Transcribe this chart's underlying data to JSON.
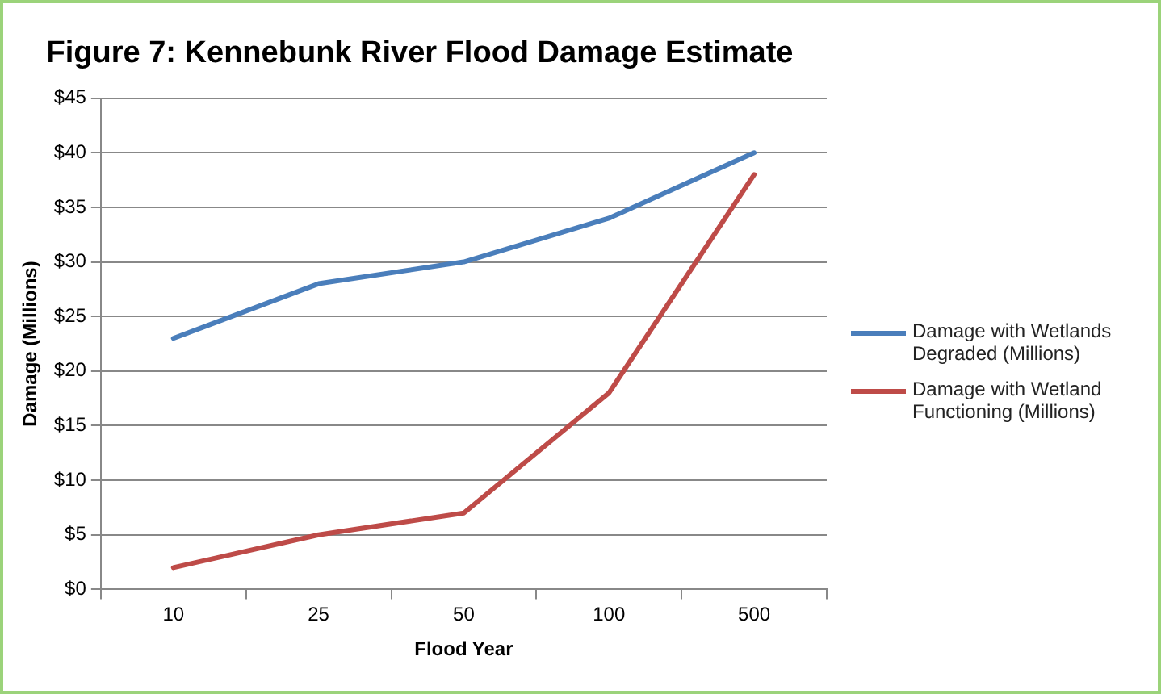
{
  "chart_data": {
    "type": "line",
    "title": "Figure 7: Kennebunk River Flood Damage Estimate",
    "xlabel": "Flood Year",
    "ylabel": "Damage (Millions)",
    "categories": [
      "10",
      "25",
      "50",
      "100",
      "500"
    ],
    "series": [
      {
        "name": "Damage with Wetlands Degraded (Millions)",
        "color": "#4a7ebb",
        "values": [
          23,
          28,
          30,
          34,
          40
        ]
      },
      {
        "name": "Damage with Wetland Functioning (Millions)",
        "color": "#be4b48",
        "values": [
          2,
          5,
          7,
          18,
          38
        ]
      }
    ],
    "ylim": [
      0,
      45
    ],
    "yticks": [
      {
        "value": 0,
        "label": "$0"
      },
      {
        "value": 5,
        "label": "$5"
      },
      {
        "value": 10,
        "label": "$10"
      },
      {
        "value": 15,
        "label": "$15"
      },
      {
        "value": 20,
        "label": "$20"
      },
      {
        "value": 25,
        "label": "$25"
      },
      {
        "value": 30,
        "label": "$30"
      },
      {
        "value": 35,
        "label": "$35"
      },
      {
        "value": 40,
        "label": "$40"
      },
      {
        "value": 45,
        "label": "$45"
      }
    ],
    "grid": "y",
    "legend": "right",
    "marker": "none",
    "line_style": "solid"
  }
}
